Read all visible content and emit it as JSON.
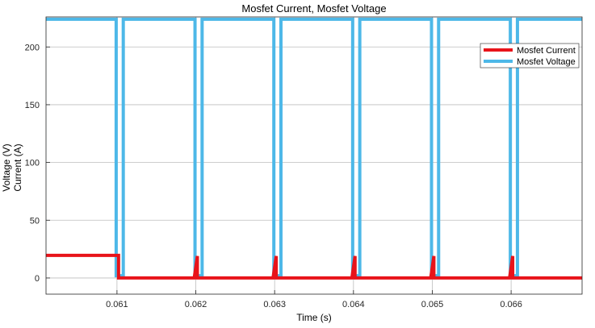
{
  "chart_data": {
    "type": "line",
    "title": "Mosfet Current, Mosfet Voltage",
    "xlabel": "Time (s)",
    "ylabel": [
      "Voltage (V)",
      "Current (A)"
    ],
    "xlim": [
      0.0601,
      0.0669
    ],
    "ylim": [
      -14,
      226
    ],
    "xticks": [
      0.061,
      0.062,
      0.063,
      0.064,
      0.065,
      0.066
    ],
    "xtick_labels": [
      "0.061",
      "0.062",
      "0.063",
      "0.064",
      "0.065",
      "0.066"
    ],
    "yticks": [
      0,
      50,
      100,
      150,
      200
    ],
    "ytick_labels": [
      "0",
      "50",
      "100",
      "150",
      "200"
    ],
    "grid": true,
    "legend": {
      "placement": "top-right"
    },
    "series": [
      {
        "name": "Mosfet Current",
        "color": "#e8131a",
        "x": [
          0.0601,
          0.0601,
          0.06102,
          0.06102,
          0.06198,
          0.06202,
          0.06202,
          0.06298,
          0.06302,
          0.06302,
          0.06398,
          0.06402,
          0.06402,
          0.06498,
          0.06502,
          0.06502,
          0.06598,
          0.06602,
          0.06602,
          0.06698,
          0.0669
        ],
        "y": [
          19,
          19.6,
          19.6,
          0,
          0,
          19,
          0,
          0,
          19,
          0,
          0,
          19,
          0,
          0,
          19,
          0,
          0,
          19,
          0,
          0,
          0
        ]
      },
      {
        "name": "Mosfet Voltage",
        "color": "#4db8e8",
        "x": [
          0.0601,
          0.06008,
          0.06008,
          0.06099,
          0.06099,
          0.06108,
          0.06108,
          0.06199,
          0.06199,
          0.06208,
          0.06208,
          0.06299,
          0.06299,
          0.06308,
          0.06308,
          0.06399,
          0.06399,
          0.06408,
          0.06408,
          0.06499,
          0.06499,
          0.06508,
          0.06508,
          0.06599,
          0.06599,
          0.06608,
          0.06608,
          0.0669
        ],
        "y": [
          2,
          2,
          224,
          224,
          2,
          2,
          224,
          224,
          2,
          2,
          224,
          224,
          2,
          2,
          224,
          224,
          2,
          2,
          224,
          224,
          2,
          2,
          224,
          224,
          2,
          2,
          224,
          224
        ]
      }
    ]
  }
}
